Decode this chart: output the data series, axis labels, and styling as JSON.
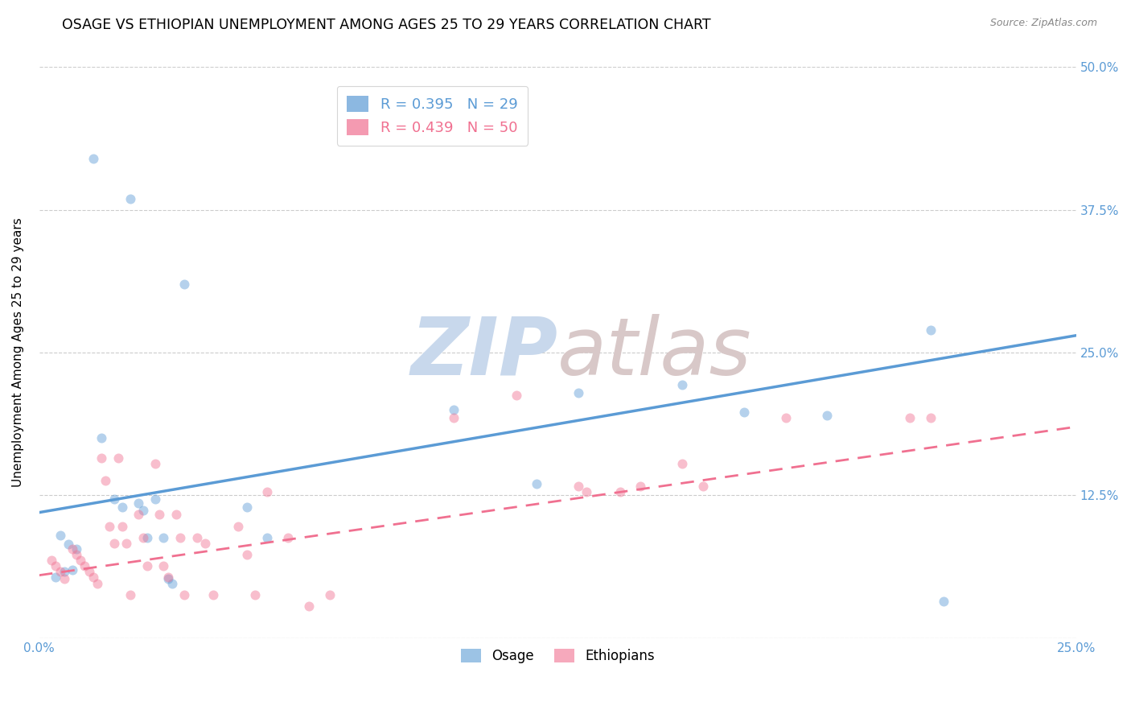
{
  "title": "OSAGE VS ETHIOPIAN UNEMPLOYMENT AMONG AGES 25 TO 29 YEARS CORRELATION CHART",
  "source": "Source: ZipAtlas.com",
  "ylabel": "Unemployment Among Ages 25 to 29 years",
  "xlim": [
    0.0,
    0.25
  ],
  "ylim": [
    0.0,
    0.5
  ],
  "xticks": [
    0.0,
    0.05,
    0.1,
    0.15,
    0.2,
    0.25
  ],
  "yticks": [
    0.0,
    0.125,
    0.25,
    0.375,
    0.5
  ],
  "xticklabels": [
    "0.0%",
    "",
    "",
    "",
    "",
    "25.0%"
  ],
  "yticklabels_right": [
    "",
    "12.5%",
    "25.0%",
    "37.5%",
    "50.0%"
  ],
  "legend_entries": [
    {
      "label": "R = 0.395   N = 29",
      "color": "#5b9bd5"
    },
    {
      "label": "R = 0.439   N = 50",
      "color": "#f07090"
    }
  ],
  "osage_scatter": [
    [
      0.005,
      0.09
    ],
    [
      0.007,
      0.082
    ],
    [
      0.008,
      0.06
    ],
    [
      0.009,
      0.078
    ],
    [
      0.013,
      0.42
    ],
    [
      0.015,
      0.175
    ],
    [
      0.018,
      0.122
    ],
    [
      0.02,
      0.115
    ],
    [
      0.022,
      0.385
    ],
    [
      0.024,
      0.118
    ],
    [
      0.025,
      0.112
    ],
    [
      0.026,
      0.088
    ],
    [
      0.028,
      0.122
    ],
    [
      0.03,
      0.088
    ],
    [
      0.031,
      0.052
    ],
    [
      0.032,
      0.048
    ],
    [
      0.035,
      0.31
    ],
    [
      0.05,
      0.115
    ],
    [
      0.055,
      0.088
    ],
    [
      0.1,
      0.2
    ],
    [
      0.12,
      0.135
    ],
    [
      0.13,
      0.215
    ],
    [
      0.155,
      0.222
    ],
    [
      0.17,
      0.198
    ],
    [
      0.19,
      0.195
    ],
    [
      0.215,
      0.27
    ],
    [
      0.218,
      0.032
    ],
    [
      0.004,
      0.053
    ],
    [
      0.006,
      0.058
    ]
  ],
  "ethiopian_scatter": [
    [
      0.003,
      0.068
    ],
    [
      0.004,
      0.063
    ],
    [
      0.005,
      0.058
    ],
    [
      0.006,
      0.052
    ],
    [
      0.008,
      0.078
    ],
    [
      0.009,
      0.073
    ],
    [
      0.01,
      0.068
    ],
    [
      0.011,
      0.063
    ],
    [
      0.012,
      0.058
    ],
    [
      0.013,
      0.053
    ],
    [
      0.014,
      0.048
    ],
    [
      0.015,
      0.158
    ],
    [
      0.016,
      0.138
    ],
    [
      0.017,
      0.098
    ],
    [
      0.018,
      0.083
    ],
    [
      0.019,
      0.158
    ],
    [
      0.02,
      0.098
    ],
    [
      0.021,
      0.083
    ],
    [
      0.022,
      0.038
    ],
    [
      0.024,
      0.108
    ],
    [
      0.025,
      0.088
    ],
    [
      0.026,
      0.063
    ],
    [
      0.028,
      0.153
    ],
    [
      0.029,
      0.108
    ],
    [
      0.03,
      0.063
    ],
    [
      0.031,
      0.053
    ],
    [
      0.033,
      0.108
    ],
    [
      0.034,
      0.088
    ],
    [
      0.035,
      0.038
    ],
    [
      0.038,
      0.088
    ],
    [
      0.04,
      0.083
    ],
    [
      0.048,
      0.098
    ],
    [
      0.05,
      0.073
    ],
    [
      0.052,
      0.038
    ],
    [
      0.055,
      0.128
    ],
    [
      0.06,
      0.088
    ],
    [
      0.07,
      0.038
    ],
    [
      0.1,
      0.193
    ],
    [
      0.115,
      0.213
    ],
    [
      0.13,
      0.133
    ],
    [
      0.14,
      0.128
    ],
    [
      0.155,
      0.153
    ],
    [
      0.16,
      0.133
    ],
    [
      0.18,
      0.193
    ],
    [
      0.21,
      0.193
    ],
    [
      0.215,
      0.193
    ],
    [
      0.132,
      0.128
    ],
    [
      0.145,
      0.133
    ],
    [
      0.042,
      0.038
    ],
    [
      0.065,
      0.028
    ]
  ],
  "osage_line": {
    "y_intercept": 0.11,
    "slope": 0.62
  },
  "ethiopian_line": {
    "y_intercept": 0.055,
    "slope": 0.52
  },
  "osage_color": "#5b9bd5",
  "ethiopian_color": "#f07090",
  "scatter_alpha": 0.45,
  "scatter_size": 75,
  "background_color": "#ffffff",
  "grid_color": "#cccccc",
  "axis_color": "#5b9bd5",
  "title_fontsize": 12.5,
  "label_fontsize": 11,
  "tick_fontsize": 11,
  "watermark_zip_color": "#c8d8ec",
  "watermark_atlas_color": "#d8c8c8",
  "watermark_fontsize": 72
}
